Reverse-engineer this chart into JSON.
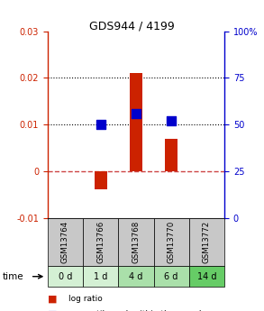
{
  "title": "GDS944 / 4199",
  "samples": [
    "GSM13764",
    "GSM13766",
    "GSM13768",
    "GSM13770",
    "GSM13772"
  ],
  "time_labels": [
    "0 d",
    "1 d",
    "4 d",
    "6 d",
    "14 d"
  ],
  "log_ratios": [
    0.0,
    -0.004,
    0.021,
    0.007,
    0.0
  ],
  "percentile_ranks": [
    null,
    50,
    56,
    52,
    null
  ],
  "ylim_left": [
    -0.01,
    0.03
  ],
  "ylim_right": [
    0,
    100
  ],
  "yticks_left": [
    -0.01,
    0,
    0.01,
    0.02,
    0.03
  ],
  "yticks_right": [
    0,
    25,
    50,
    75,
    100
  ],
  "bar_color": "#cc2200",
  "dot_color": "#0000cc",
  "zero_line_color": "#cc4444",
  "grid_color": "#000000",
  "sample_bg_color": "#c8c8c8",
  "time_bg_colors": [
    "#d4f0d4",
    "#d4f0d4",
    "#aae0aa",
    "#aae0aa",
    "#66cc66"
  ],
  "bar_width": 0.35,
  "dot_size": 55
}
